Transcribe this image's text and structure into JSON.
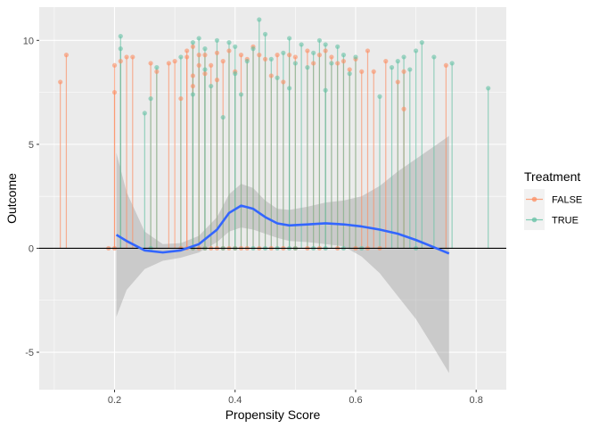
{
  "chart_data": {
    "type": "scatter",
    "title": "",
    "xlabel": "Propensity Score",
    "ylabel": "Outcome",
    "xlim": [
      0.075,
      0.85
    ],
    "ylim": [
      -6.8,
      11.6
    ],
    "x_ticks": [
      0.2,
      0.4,
      0.6,
      0.8
    ],
    "x_tick_labels": [
      "0.2",
      "0.4",
      "0.6",
      "0.8"
    ],
    "y_ticks": [
      -5,
      0,
      5,
      10
    ],
    "y_tick_labels": [
      "-5",
      "0",
      "5",
      "10"
    ],
    "grid": true,
    "hline": 0,
    "legend": {
      "title": "Treatment",
      "position": "right",
      "entries": [
        {
          "label": "FALSE",
          "color": "#FC8D62"
        },
        {
          "label": "TRUE",
          "color": "#66C2A5"
        }
      ]
    },
    "colors": {
      "panel": "#EBEBEB",
      "grid": "#FFFFFF",
      "smooth": "#3366FF",
      "ribbon": "#999999",
      "hline": "#000000"
    },
    "series": [
      {
        "name": "FALSE",
        "color": "#FC8D62",
        "points": [
          [
            0.11,
            8.0
          ],
          [
            0.12,
            9.3
          ],
          [
            0.2,
            8.8
          ],
          [
            0.2,
            7.5
          ],
          [
            0.21,
            9.0
          ],
          [
            0.22,
            9.2
          ],
          [
            0.23,
            9.2
          ],
          [
            0.26,
            8.9
          ],
          [
            0.27,
            8.5
          ],
          [
            0.29,
            8.9
          ],
          [
            0.3,
            9.0
          ],
          [
            0.31,
            7.2
          ],
          [
            0.32,
            9.2
          ],
          [
            0.32,
            9.5
          ],
          [
            0.33,
            8.3
          ],
          [
            0.33,
            9.7
          ],
          [
            0.33,
            7.8
          ],
          [
            0.34,
            9.3
          ],
          [
            0.34,
            8.8
          ],
          [
            0.35,
            9.3
          ],
          [
            0.35,
            8.4
          ],
          [
            0.36,
            8.8
          ],
          [
            0.37,
            9.4
          ],
          [
            0.37,
            8.1
          ],
          [
            0.38,
            9.0
          ],
          [
            0.39,
            9.5
          ],
          [
            0.4,
            8.5
          ],
          [
            0.41,
            9.3
          ],
          [
            0.42,
            9.1
          ],
          [
            0.43,
            9.7
          ],
          [
            0.44,
            9.3
          ],
          [
            0.45,
            9.1
          ],
          [
            0.46,
            8.3
          ],
          [
            0.47,
            9.3
          ],
          [
            0.48,
            8.0
          ],
          [
            0.49,
            9.3
          ],
          [
            0.5,
            9.2
          ],
          [
            0.52,
            9.5
          ],
          [
            0.53,
            8.9
          ],
          [
            0.54,
            9.3
          ],
          [
            0.55,
            9.5
          ],
          [
            0.56,
            9.2
          ],
          [
            0.57,
            8.9
          ],
          [
            0.58,
            9.0
          ],
          [
            0.59,
            8.6
          ],
          [
            0.6,
            9.1
          ],
          [
            0.61,
            8.5
          ],
          [
            0.62,
            9.5
          ],
          [
            0.63,
            8.5
          ],
          [
            0.65,
            9.0
          ],
          [
            0.67,
            8.0
          ],
          [
            0.68,
            6.7
          ],
          [
            0.68,
            8.5
          ],
          [
            0.75,
            8.8
          ]
        ]
      },
      {
        "name": "TRUE",
        "color": "#66C2A5",
        "points": [
          [
            0.21,
            9.6
          ],
          [
            0.21,
            10.2
          ],
          [
            0.25,
            6.5
          ],
          [
            0.26,
            7.2
          ],
          [
            0.27,
            8.7
          ],
          [
            0.31,
            9.2
          ],
          [
            0.33,
            9.9
          ],
          [
            0.33,
            7.4
          ],
          [
            0.34,
            10.1
          ],
          [
            0.35,
            9.6
          ],
          [
            0.35,
            8.6
          ],
          [
            0.36,
            7.8
          ],
          [
            0.37,
            10.0
          ],
          [
            0.38,
            6.3
          ],
          [
            0.39,
            9.9
          ],
          [
            0.4,
            8.4
          ],
          [
            0.4,
            9.7
          ],
          [
            0.41,
            7.4
          ],
          [
            0.42,
            9.0
          ],
          [
            0.43,
            9.6
          ],
          [
            0.44,
            11.0
          ],
          [
            0.45,
            10.3
          ],
          [
            0.46,
            9.1
          ],
          [
            0.47,
            8.2
          ],
          [
            0.48,
            9.4
          ],
          [
            0.49,
            7.7
          ],
          [
            0.49,
            10.1
          ],
          [
            0.5,
            8.9
          ],
          [
            0.51,
            9.8
          ],
          [
            0.52,
            8.7
          ],
          [
            0.53,
            9.4
          ],
          [
            0.54,
            10.0
          ],
          [
            0.55,
            7.6
          ],
          [
            0.55,
            9.8
          ],
          [
            0.56,
            8.9
          ],
          [
            0.57,
            9.7
          ],
          [
            0.58,
            9.3
          ],
          [
            0.59,
            8.4
          ],
          [
            0.6,
            9.2
          ],
          [
            0.64,
            7.3
          ],
          [
            0.66,
            8.7
          ],
          [
            0.67,
            9.0
          ],
          [
            0.68,
            9.2
          ],
          [
            0.69,
            8.6
          ],
          [
            0.7,
            9.5
          ],
          [
            0.71,
            9.9
          ],
          [
            0.73,
            9.2
          ],
          [
            0.76,
            8.9
          ],
          [
            0.82,
            7.7
          ]
        ]
      }
    ],
    "zero_points": {
      "FALSE": [
        0.19,
        0.2,
        0.31,
        0.32,
        0.33,
        0.34,
        0.35,
        0.36,
        0.37,
        0.38,
        0.39,
        0.4,
        0.41,
        0.42,
        0.44,
        0.46,
        0.48,
        0.5,
        0.52,
        0.54,
        0.57,
        0.6,
        0.62,
        0.64
      ],
      "TRUE": [
        0.26,
        0.33,
        0.35,
        0.38,
        0.4,
        0.43,
        0.45,
        0.47,
        0.49,
        0.5,
        0.53,
        0.55,
        0.58,
        0.61,
        0.7
      ]
    },
    "smooth": {
      "x": [
        0.203,
        0.22,
        0.25,
        0.28,
        0.31,
        0.34,
        0.37,
        0.39,
        0.41,
        0.43,
        0.45,
        0.47,
        0.49,
        0.52,
        0.55,
        0.58,
        0.61,
        0.64,
        0.67,
        0.7,
        0.73,
        0.755
      ],
      "y": [
        0.65,
        0.35,
        -0.1,
        -0.2,
        -0.1,
        0.2,
        0.9,
        1.7,
        2.05,
        1.9,
        1.5,
        1.2,
        1.1,
        1.15,
        1.2,
        1.15,
        1.05,
        0.9,
        0.7,
        0.4,
        0.05,
        -0.25
      ],
      "lower": [
        -3.3,
        -2.0,
        -1.0,
        -0.6,
        -0.45,
        -0.2,
        0.3,
        0.8,
        1.0,
        0.9,
        0.7,
        0.5,
        0.35,
        0.3,
        0.2,
        0.1,
        -0.4,
        -1.2,
        -2.3,
        -3.4,
        -4.8,
        -6.0
      ],
      "upper": [
        4.6,
        2.7,
        0.8,
        0.2,
        0.25,
        0.6,
        1.5,
        2.6,
        3.1,
        2.9,
        2.3,
        1.9,
        1.85,
        2.0,
        2.2,
        2.3,
        2.5,
        3.0,
        3.7,
        4.3,
        4.9,
        5.4
      ]
    }
  }
}
